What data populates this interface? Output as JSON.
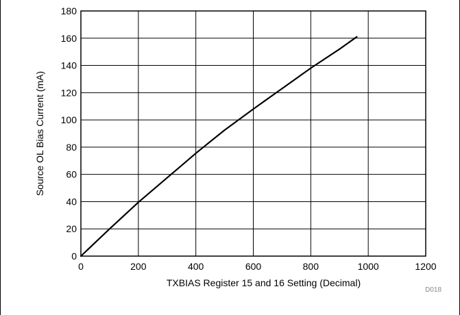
{
  "chart_data": {
    "type": "line",
    "xlabel": "TXBIAS Register 15 and 16 Setting (Decimal)",
    "ylabel": "Source OL Bias Current (mA)",
    "xlim": [
      0,
      1200
    ],
    "ylim": [
      0,
      180
    ],
    "x_ticks": [
      0,
      200,
      400,
      600,
      800,
      1000,
      1200
    ],
    "y_ticks": [
      0,
      20,
      40,
      60,
      80,
      100,
      120,
      140,
      160,
      180
    ],
    "grid": true,
    "series": [
      {
        "x": [
          0,
          100,
          200,
          300,
          400,
          450,
          500,
          600,
          700,
          800,
          900,
          960
        ],
        "y": [
          0,
          20,
          39.5,
          57.5,
          75.5,
          84,
          92.5,
          108,
          123,
          138,
          152,
          161
        ]
      }
    ],
    "colors": {
      "line": "#000000",
      "grid": "#000000"
    },
    "footnote": "D018"
  }
}
